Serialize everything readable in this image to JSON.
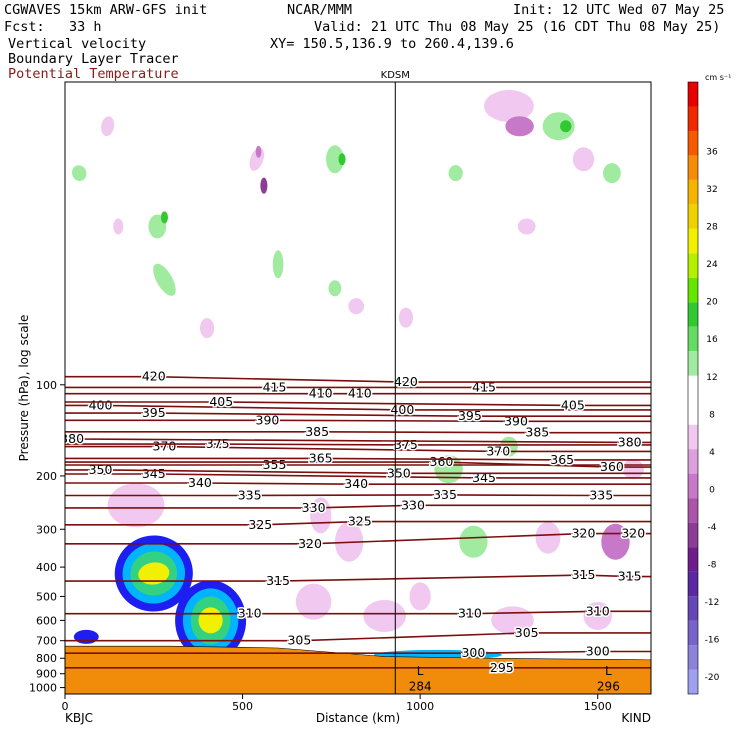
{
  "header": {
    "model": "CGWAVES 15km ARW-GFS init",
    "org": "NCAR/MMM",
    "init": "Init: 12 UTC Wed 07 May 25",
    "fcst": "Fcst:   33 h",
    "valid": "Valid: 21 UTC Thu 08 May 25 (16 CDT Thu 08 May 25)",
    "field1": "Vertical velocity",
    "xy": "XY= 150.5,136.9 to 260.4,139.6",
    "field2": "Boundary Layer Tracer",
    "field3": "Potential Temperature"
  },
  "colors": {
    "theta_line": "#7b0f0f",
    "terrain": "#f08c0a",
    "tracer": "#1e1ef0",
    "header_red": "#8b1a1a"
  },
  "chart_data": {
    "type": "contour",
    "xlabel": "Distance (km)",
    "ylabel": "Pressure (hPa), log scale",
    "xlim": [
      0,
      1650
    ],
    "ylim": [
      1050,
      10
    ],
    "x_ticks": [
      "0",
      "500",
      "1000",
      "1500"
    ],
    "x_tick_values": [
      0,
      500,
      1000,
      1500
    ],
    "y_ticks": [
      "100",
      "200",
      "300",
      "400",
      "500",
      "600",
      "700",
      "800",
      "900",
      "1000"
    ],
    "y_tick_values": [
      100,
      200,
      300,
      400,
      500,
      600,
      700,
      800,
      900,
      1000
    ],
    "station_marker": {
      "label": "KDSM",
      "x": 930
    },
    "endpoints": {
      "left": "KBJC",
      "right": "KIND"
    },
    "colorbar": {
      "unit": "cm s⁻¹",
      "labels": [
        "36",
        "32",
        "28",
        "24",
        "20",
        "16",
        "12",
        "8",
        "4",
        "0",
        "-4",
        "-8",
        "-12",
        "-16",
        "-20"
      ],
      "colors": [
        "#e60000",
        "#f02800",
        "#f55a00",
        "#f78c0a",
        "#f5b400",
        "#f0d200",
        "#f0f000",
        "#b4f000",
        "#64e600",
        "#32c832",
        "#64dc64",
        "#a0eba0",
        "#ffffff",
        "#ffffff",
        "#f0c8f0",
        "#dca0dc",
        "#c878c8",
        "#aa55aa",
        "#8c3c96",
        "#6e1e8c",
        "#5a28a0",
        "#6446b4",
        "#7864c8",
        "#8c82dc",
        "#a0a0f0"
      ]
    },
    "theta_contours": [
      {
        "level": 295,
        "label_pts": [
          [
            1230,
            860
          ]
        ]
      },
      {
        "level": 300,
        "label_pts": [
          [
            1150,
            770
          ],
          [
            1500,
            760
          ]
        ]
      },
      {
        "level": 305,
        "label_pts": [
          [
            660,
            700
          ],
          [
            1300,
            660
          ]
        ]
      },
      {
        "level": 310,
        "label_pts": [
          [
            520,
            570
          ],
          [
            1140,
            570
          ],
          [
            1500,
            560
          ]
        ]
      },
      {
        "level": 315,
        "label_pts": [
          [
            600,
            445
          ],
          [
            1460,
            425
          ],
          [
            1590,
            430
          ]
        ]
      },
      {
        "level": 320,
        "label_pts": [
          [
            690,
            335
          ],
          [
            1460,
            310
          ],
          [
            1600,
            310
          ]
        ]
      },
      {
        "level": 325,
        "label_pts": [
          [
            550,
            290
          ],
          [
            830,
            283
          ]
        ]
      },
      {
        "level": 330,
        "label_pts": [
          [
            700,
            255
          ],
          [
            980,
            250
          ]
        ]
      },
      {
        "level": 335,
        "label_pts": [
          [
            520,
            232
          ],
          [
            1070,
            231
          ],
          [
            1510,
            232
          ]
        ]
      },
      {
        "level": 340,
        "label_pts": [
          [
            380,
            211
          ],
          [
            820,
            213
          ]
        ]
      },
      {
        "level": 345,
        "label_pts": [
          [
            250,
            197
          ],
          [
            1180,
            203
          ]
        ]
      },
      {
        "level": 350,
        "label_pts": [
          [
            100,
            191
          ],
          [
            940,
            196
          ]
        ]
      },
      {
        "level": 355,
        "label_pts": [
          [
            590,
            184
          ]
        ]
      },
      {
        "level": 360,
        "label_pts": [
          [
            1060,
            180
          ],
          [
            1540,
            187
          ]
        ]
      },
      {
        "level": 365,
        "label_pts": [
          [
            720,
            175
          ],
          [
            1400,
            177
          ]
        ]
      },
      {
        "level": 370,
        "label_pts": [
          [
            280,
            160
          ],
          [
            1220,
            166
          ]
        ]
      },
      {
        "level": 375,
        "label_pts": [
          [
            430,
            157
          ],
          [
            960,
            158
          ]
        ]
      },
      {
        "level": 380,
        "label_pts": [
          [
            20,
            151
          ],
          [
            1590,
            155
          ]
        ]
      },
      {
        "level": 385,
        "label_pts": [
          [
            710,
            143
          ],
          [
            1330,
            144
          ]
        ]
      },
      {
        "level": 390,
        "label_pts": [
          [
            570,
            131
          ],
          [
            1270,
            132
          ]
        ]
      },
      {
        "level": 395,
        "label_pts": [
          [
            250,
            124
          ],
          [
            1140,
            127
          ]
        ]
      },
      {
        "level": 400,
        "label_pts": [
          [
            100,
            117
          ],
          [
            950,
            121
          ]
        ]
      },
      {
        "level": 405,
        "label_pts": [
          [
            440,
            114
          ],
          [
            1430,
            117
          ]
        ]
      },
      {
        "level": 410,
        "label_pts": [
          [
            720,
            107
          ],
          [
            830,
            107
          ]
        ]
      },
      {
        "level": 415,
        "label_pts": [
          [
            590,
            102
          ],
          [
            1180,
            102
          ]
        ]
      },
      {
        "level": 420,
        "label_pts": [
          [
            250,
            94
          ],
          [
            960,
            98
          ]
        ]
      }
    ],
    "terrain_labels": [
      "L",
      "L",
      "284",
      "296"
    ]
  }
}
